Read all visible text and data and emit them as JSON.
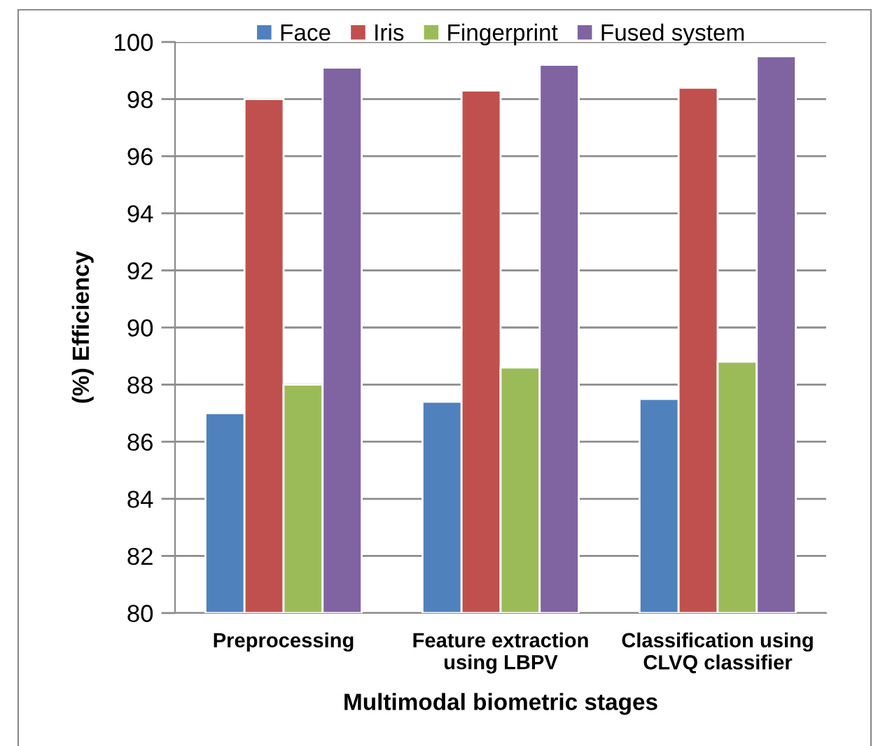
{
  "chart_data": {
    "type": "bar",
    "categories": [
      "Preprocessing",
      "Feature extraction\nusing LBPV",
      "Classification using\nCLVQ classifier"
    ],
    "series": [
      {
        "name": "Face",
        "color": "#4f81bd",
        "values": [
          87.0,
          87.4,
          87.5
        ]
      },
      {
        "name": "Iris",
        "color": "#c0504d",
        "values": [
          98.0,
          98.3,
          98.4
        ]
      },
      {
        "name": "Fingerprint",
        "color": "#9bbb59",
        "values": [
          88.0,
          88.6,
          88.8
        ]
      },
      {
        "name": "Fused system",
        "color": "#8064a2",
        "values": [
          99.1,
          99.2,
          99.5
        ]
      }
    ],
    "xlabel": "Multimodal biometric stages",
    "ylabel": "(%) Efficiency",
    "ylim": [
      80,
      100
    ],
    "yticks": [
      80,
      82,
      84,
      86,
      88,
      90,
      92,
      94,
      96,
      98,
      100
    ],
    "grid": "y",
    "legend": "top"
  }
}
